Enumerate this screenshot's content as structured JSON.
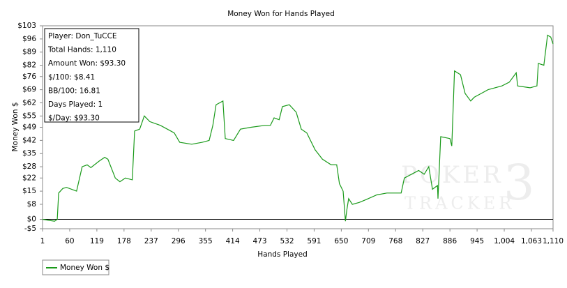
{
  "chart_data": {
    "type": "line",
    "title": "Money Won for Hands Played",
    "x_label": "Hands Played",
    "y_label": "Money Won $",
    "info_box": [
      "Player: Don_TuCCE",
      "Total Hands: 1,110",
      "Amount Won: $93.30",
      "$/100: $8.41",
      "BB/100: 16.81",
      "Days Played: 1",
      "$/Day: $93.30"
    ],
    "watermark": [
      "POKER",
      "TRACKER",
      "3"
    ],
    "x": [
      1,
      27,
      33,
      36,
      45,
      53,
      75,
      87,
      98,
      106,
      124,
      136,
      143,
      159,
      169,
      181,
      196,
      201,
      212,
      222,
      234,
      257,
      272,
      287,
      299,
      325,
      348,
      363,
      371,
      378,
      393,
      398,
      416,
      431,
      454,
      484,
      496,
      504,
      515,
      522,
      537,
      552,
      563,
      575,
      593,
      609,
      628,
      640,
      646,
      654,
      659,
      662,
      666,
      674,
      689,
      704,
      727,
      749,
      780,
      787,
      818,
      830,
      840,
      848,
      859,
      860,
      866,
      886,
      890,
      896,
      909,
      919,
      931,
      939,
      954,
      969,
      999,
      1015,
      1030,
      1033,
      1060,
      1075,
      1078,
      1090,
      1098,
      1105,
      1110
    ],
    "series": [
      {
        "name": "Money Won $",
        "color": "#1a9a1a",
        "values": [
          0,
          -1,
          0,
          14,
          16.4,
          17,
          15,
          28,
          29,
          27.5,
          31,
          33,
          32,
          22,
          20,
          22,
          21,
          47,
          48,
          55,
          52,
          50,
          48,
          46,
          41,
          40,
          41,
          42,
          50,
          61,
          63,
          43,
          42,
          48,
          49,
          50,
          50,
          54,
          53,
          60,
          61,
          57,
          48,
          46,
          37,
          32,
          29,
          29,
          19,
          15,
          -1,
          5,
          11,
          8,
          9,
          10.5,
          13,
          14,
          14,
          22,
          26,
          24,
          28,
          16,
          18,
          11,
          44,
          43,
          39,
          79,
          77,
          67,
          63,
          65,
          67,
          69,
          71,
          73,
          78,
          71,
          70,
          71,
          83,
          82,
          98,
          97,
          93.3
        ]
      }
    ],
    "xlim": [
      1,
      1110
    ],
    "ylim": [
      -5,
      103
    ],
    "xticks": [
      1,
      60,
      119,
      178,
      237,
      296,
      355,
      414,
      473,
      532,
      591,
      650,
      709,
      768,
      827,
      886,
      945,
      {
        "value": 1004,
        "label": "1,004"
      },
      {
        "value": 1063,
        "label": "1,063"
      },
      {
        "value": 1110,
        "label": "1,110"
      }
    ],
    "yticks": [
      {
        "value": -5,
        "label": "-$5"
      },
      {
        "value": 0,
        "label": "$0"
      },
      {
        "value": 8,
        "label": "$8"
      },
      {
        "value": 15,
        "label": "$15"
      },
      {
        "value": 22,
        "label": "$22"
      },
      {
        "value": 28,
        "label": "$28"
      },
      {
        "value": 35,
        "label": "$35"
      },
      {
        "value": 42,
        "label": "$42"
      },
      {
        "value": 49,
        "label": "$49"
      },
      {
        "value": 55,
        "label": "$55"
      },
      {
        "value": 62,
        "label": "$62"
      },
      {
        "value": 69,
        "label": "$69"
      },
      {
        "value": 76,
        "label": "$76"
      },
      {
        "value": 82,
        "label": "$82"
      },
      {
        "value": 89,
        "label": "$89"
      },
      {
        "value": 96,
        "label": "$96"
      },
      {
        "value": 103,
        "label": "$103"
      }
    ],
    "zero_line": true,
    "legend": "bottom-left"
  }
}
